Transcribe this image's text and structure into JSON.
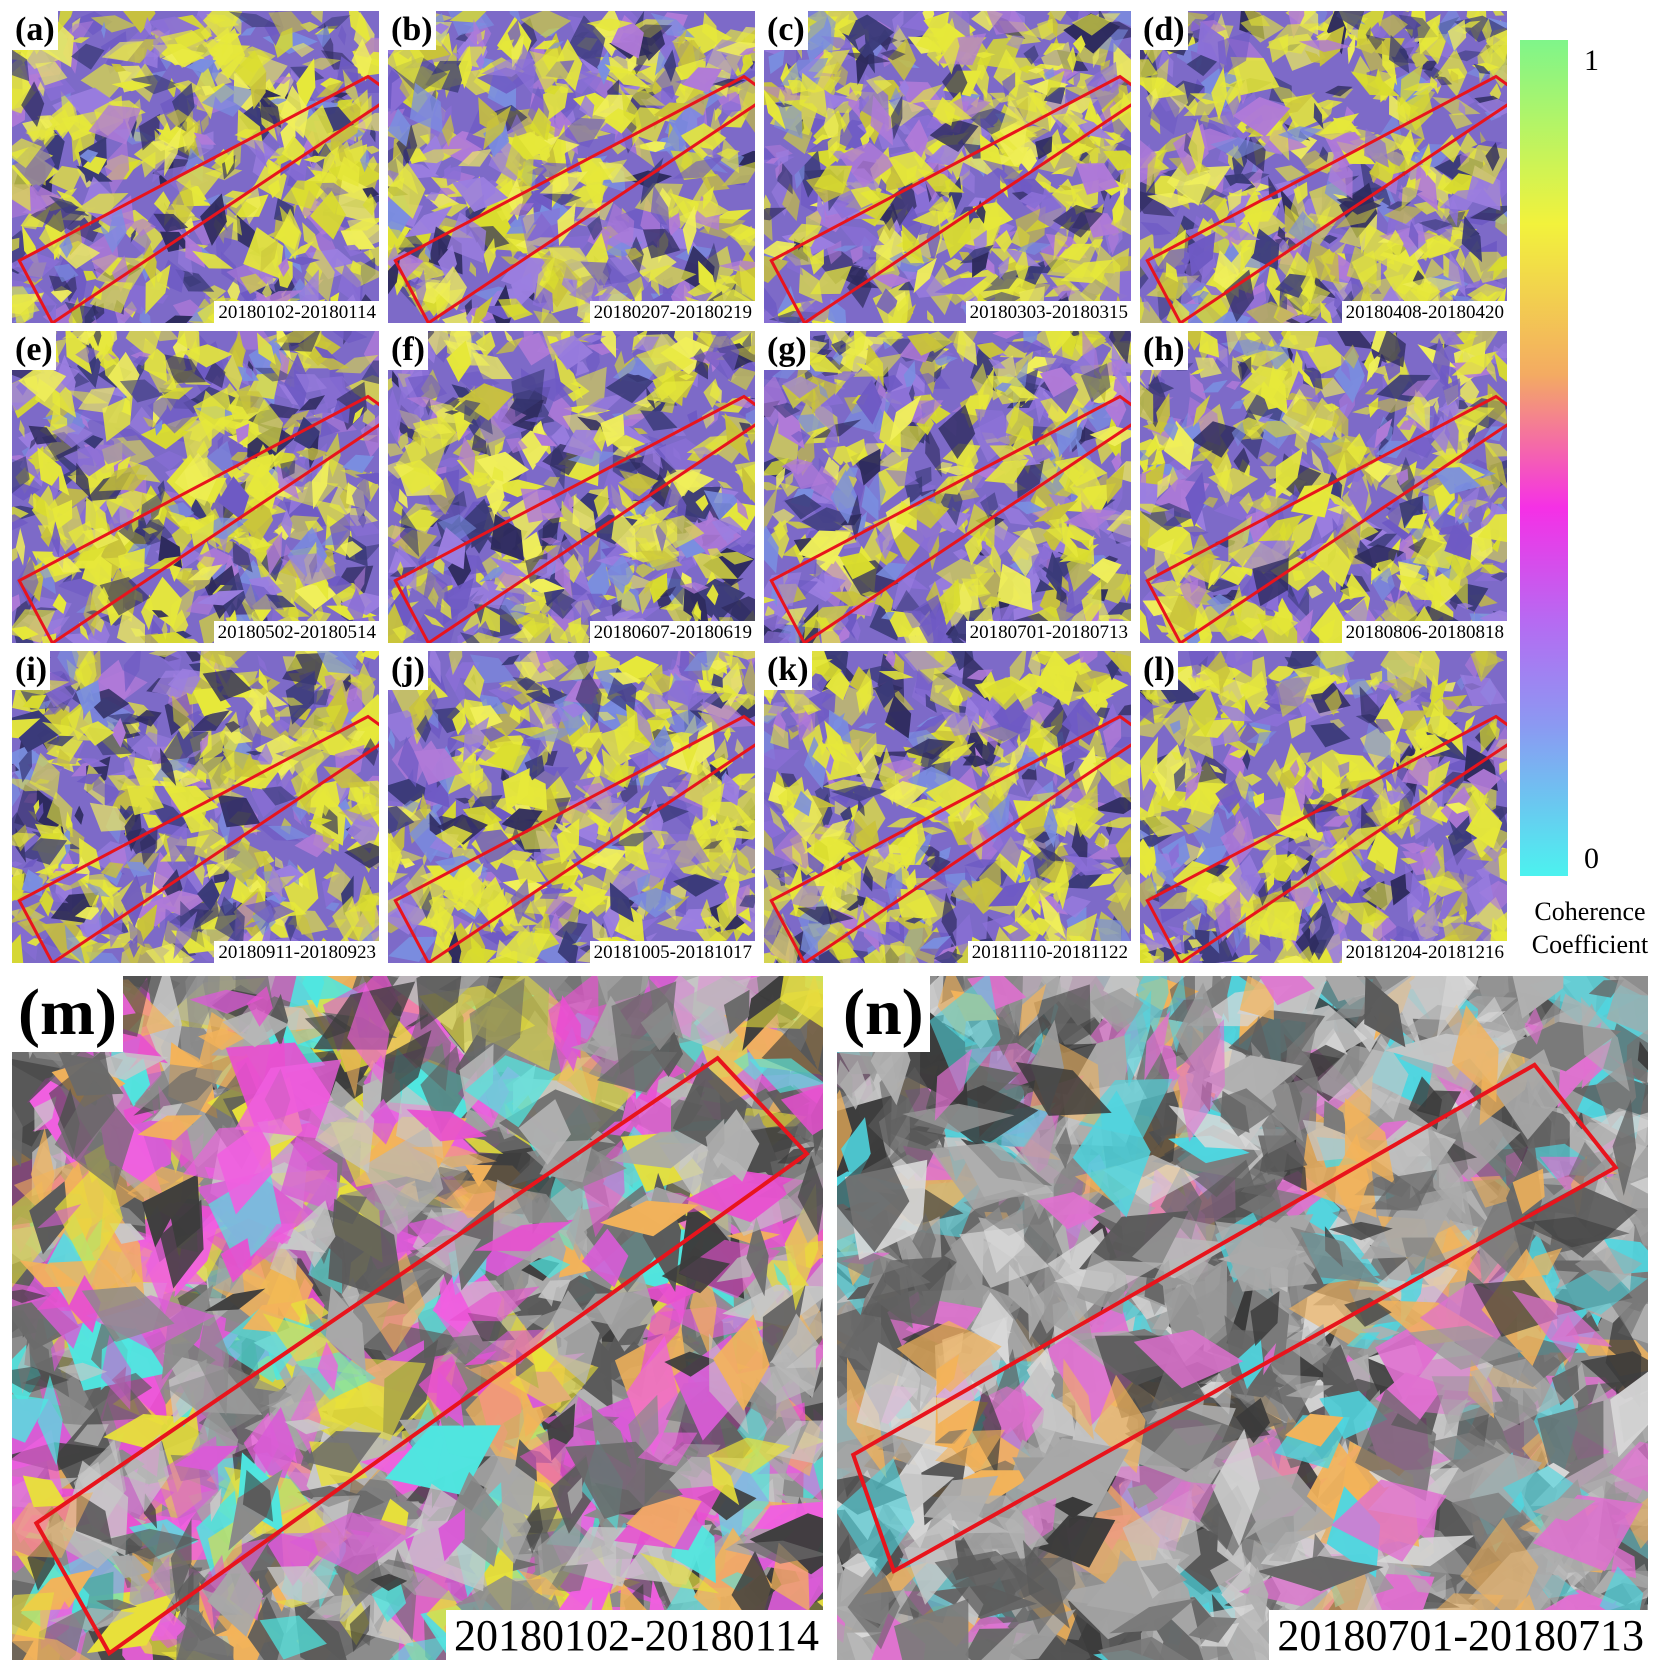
{
  "panels": [
    {
      "id": "a",
      "label": "(a)",
      "dates": "20180102-20180114"
    },
    {
      "id": "b",
      "label": "(b)",
      "dates": "20180207-20180219"
    },
    {
      "id": "c",
      "label": "(c)",
      "dates": "20180303-20180315"
    },
    {
      "id": "d",
      "label": "(d)",
      "dates": "20180408-20180420"
    },
    {
      "id": "e",
      "label": "(e)",
      "dates": "20180502-20180514"
    },
    {
      "id": "f",
      "label": "(f)",
      "dates": "20180607-20180619"
    },
    {
      "id": "g",
      "label": "(g)",
      "dates": "20180701-20180713"
    },
    {
      "id": "h",
      "label": "(h)",
      "dates": "20180806-20180818"
    },
    {
      "id": "i",
      "label": "(i)",
      "dates": "20180911-20180923"
    },
    {
      "id": "j",
      "label": "(j)",
      "dates": "20181005-20181017"
    },
    {
      "id": "k",
      "label": "(k)",
      "dates": "20181110-20181122"
    },
    {
      "id": "l",
      "label": "(l)",
      "dates": "20181204-20181216"
    }
  ],
  "large_panels": [
    {
      "id": "m",
      "label": "(m)",
      "dates": "20180102-20180114"
    },
    {
      "id": "n",
      "label": "(n)",
      "dates": "20180701-20180713"
    }
  ],
  "colorbar": {
    "max_label": "1",
    "min_label": "0",
    "title_line1": "Coherence",
    "title_line2": "Coefficient",
    "colors": [
      "#7ff58a",
      "#f2f23c",
      "#f3ab62",
      "#f530e6",
      "#b46cf2",
      "#8b99f2",
      "#4cf2ef"
    ]
  },
  "colors": {
    "study_area_box": "#e8141c",
    "high_coherence": "#e6e83a",
    "low_coherence": "#8a6fd6",
    "shadow": "#3a3a78"
  }
}
